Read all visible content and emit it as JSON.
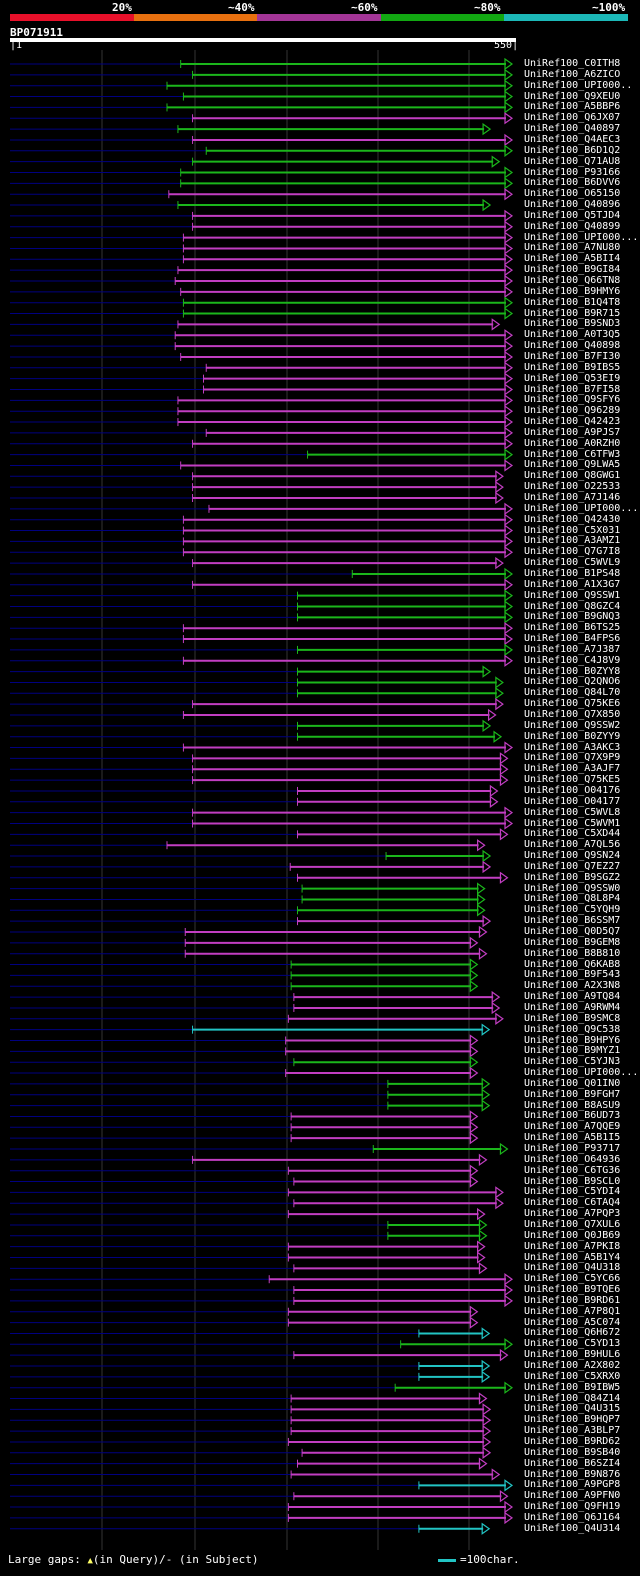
{
  "legend": {
    "labels": [
      "20%",
      "~40%",
      "~60%",
      "~80%",
      "~100%"
    ],
    "colors": [
      "#e8102a",
      "#e8700f",
      "#a33597",
      "#12a812",
      "#1cb8b8"
    ]
  },
  "query": {
    "name": "BP071911",
    "start": "1",
    "end": "550"
  },
  "hit_colors": {
    "magenta": "#c23ec2",
    "green": "#1bb61b",
    "cyan": "#22c4c4",
    "background_line": "#000080",
    "gap_marker": "#ffff66"
  },
  "hits": [
    {
      "name": "UniRef100_C0ITH8",
      "start": 187,
      "color": "green",
      "end": 550
    },
    {
      "name": "UniRef100_A6ZICO",
      "start": 200,
      "color": "green",
      "end": 550
    },
    {
      "name": "UniRef100_UPI000..",
      "start": 172,
      "color": "green",
      "end": 550
    },
    {
      "name": "UniRef100_Q9XEU0",
      "start": 190,
      "color": "green",
      "end": 550
    },
    {
      "name": "UniRef100_A5BBP6",
      "start": 172,
      "color": "green",
      "end": 550
    },
    {
      "name": "UniRef100_Q6JX07",
      "start": 200,
      "color": "magenta",
      "end": 550
    },
    {
      "name": "UniRef100_Q40897",
      "start": 184,
      "color": "green",
      "end": 526
    },
    {
      "name": "UniRef100_Q4AEC3",
      "start": 200,
      "color": "magenta",
      "end": 550
    },
    {
      "name": "UniRef100_B6D1Q2",
      "start": 215,
      "color": "green",
      "end": 550
    },
    {
      "name": "UniRef100_Q71AU8",
      "start": 200,
      "color": "green",
      "end": 536
    },
    {
      "name": "UniRef100_P93166",
      "start": 187,
      "color": "green",
      "end": 550
    },
    {
      "name": "UniRef100_B6DVV6",
      "start": 187,
      "color": "green",
      "end": 550
    },
    {
      "name": "UniRef100_O65150",
      "start": 174,
      "color": "magenta",
      "end": 550
    },
    {
      "name": "UniRef100_Q40896",
      "start": 184,
      "color": "green",
      "end": 526
    },
    {
      "name": "UniRef100_Q5TJD4",
      "start": 200,
      "color": "magenta",
      "end": 550
    },
    {
      "name": "UniRef100_Q40899",
      "start": 200,
      "color": "magenta",
      "end": 550
    },
    {
      "name": "UniRef100_UPI000...",
      "start": 190,
      "color": "magenta",
      "end": 550
    },
    {
      "name": "UniRef100_A7NU80",
      "start": 190,
      "color": "magenta",
      "end": 550
    },
    {
      "name": "UniRef100_A5BII4",
      "start": 190,
      "color": "magenta",
      "end": 550
    },
    {
      "name": "UniRef100_B9GI84",
      "start": 184,
      "color": "magenta",
      "end": 550
    },
    {
      "name": "UniRef100_Q66TN8",
      "start": 181,
      "color": "magenta",
      "end": 550
    },
    {
      "name": "UniRef100_B9HMY6",
      "start": 187,
      "color": "magenta",
      "end": 550
    },
    {
      "name": "UniRef100_B1Q4T8",
      "start": 190,
      "color": "green",
      "end": 550
    },
    {
      "name": "UniRef100_B9R715",
      "start": 190,
      "color": "green",
      "end": 550
    },
    {
      "name": "UniRef100_B9SND3",
      "start": 184,
      "color": "magenta",
      "end": 536
    },
    {
      "name": "UniRef100_A0T3Q5",
      "start": 181,
      "color": "magenta",
      "end": 550
    },
    {
      "name": "UniRef100_Q40898",
      "start": 181,
      "color": "magenta",
      "end": 550
    },
    {
      "name": "UniRef100_B7FI30",
      "start": 187,
      "color": "magenta",
      "end": 550
    },
    {
      "name": "UniRef100_B9IBS5",
      "start": 215,
      "color": "magenta",
      "end": 550
    },
    {
      "name": "UniRef100_Q53EI9",
      "start": 212,
      "color": "magenta",
      "end": 550
    },
    {
      "name": "UniRef100_B7FI58",
      "start": 212,
      "color": "magenta",
      "end": 550
    },
    {
      "name": "UniRef100_Q9SFY6",
      "start": 184,
      "color": "magenta",
      "end": 550
    },
    {
      "name": "UniRef100_Q96289",
      "start": 184,
      "color": "magenta",
      "end": 550
    },
    {
      "name": "UniRef100_Q42423",
      "start": 184,
      "color": "magenta",
      "end": 550
    },
    {
      "name": "UniRef100_A9PJS7",
      "start": 215,
      "color": "magenta",
      "end": 550
    },
    {
      "name": "UniRef100_A0RZH0",
      "start": 200,
      "color": "magenta",
      "end": 550
    },
    {
      "name": "UniRef100_C6TFW3",
      "start": 326,
      "color": "green",
      "end": 550
    },
    {
      "name": "UniRef100_Q9LWA5",
      "start": 187,
      "color": "magenta",
      "end": 550
    },
    {
      "name": "UniRef100_Q8GWG1",
      "start": 200,
      "color": "magenta",
      "end": 540
    },
    {
      "name": "UniRef100_O22533",
      "start": 200,
      "color": "magenta",
      "end": 540
    },
    {
      "name": "UniRef100_A7J146",
      "start": 200,
      "color": "magenta",
      "end": 540
    },
    {
      "name": "UniRef100_UPI000....",
      "start": 218,
      "color": "magenta",
      "end": 550
    },
    {
      "name": "UniRef100_Q42430",
      "start": 190,
      "color": "magenta",
      "end": 550
    },
    {
      "name": "UniRef100_C5X031",
      "start": 190,
      "color": "magenta",
      "end": 550
    },
    {
      "name": "UniRef100_A3AMZ1",
      "start": 190,
      "color": "magenta",
      "end": 550
    },
    {
      "name": "UniRef100_Q7G7I8",
      "start": 190,
      "color": "magenta",
      "end": 550
    },
    {
      "name": "UniRef100_C5WVL9",
      "start": 200,
      "color": "magenta",
      "end": 540
    },
    {
      "name": "UniRef100_B1PS48",
      "start": 375,
      "color": "green",
      "end": 550
    },
    {
      "name": "UniRef100_A1X3G7",
      "start": 200,
      "color": "magenta",
      "end": 550
    },
    {
      "name": "UniRef100_Q9SSW1",
      "start": 315,
      "color": "green",
      "end": 550
    },
    {
      "name": "UniRef100_Q8GZC4",
      "start": 315,
      "color": "green",
      "end": 550
    },
    {
      "name": "UniRef100_B9GNQ3",
      "start": 315,
      "color": "green",
      "end": 550
    },
    {
      "name": "UniRef100_B6TS25",
      "start": 190,
      "color": "magenta",
      "end": 550
    },
    {
      "name": "UniRef100_B4FPS6",
      "start": 190,
      "color": "magenta",
      "end": 550
    },
    {
      "name": "UniRef100_A7J387",
      "start": 315,
      "color": "green",
      "end": 550
    },
    {
      "name": "UniRef100_C4J8V9",
      "start": 190,
      "color": "magenta",
      "end": 550
    },
    {
      "name": "UniRef100_B0ZYY8",
      "start": 315,
      "color": "green",
      "end": 526
    },
    {
      "name": "UniRef100_Q2QNO6",
      "start": 315,
      "color": "green",
      "end": 540
    },
    {
      "name": "UniRef100_Q84L70",
      "start": 315,
      "color": "green",
      "end": 540
    },
    {
      "name": "UniRef100_Q75KE6",
      "start": 200,
      "color": "magenta",
      "end": 540
    },
    {
      "name": "UniRef100_Q7X850",
      "start": 190,
      "color": "magenta",
      "end": 532
    },
    {
      "name": "UniRef100_Q9SSW2",
      "start": 315,
      "color": "green",
      "end": 526
    },
    {
      "name": "UniRef100_B0ZYY9",
      "start": 315,
      "color": "green",
      "end": 538
    },
    {
      "name": "UniRef100_A3AKC3",
      "start": 190,
      "color": "magenta",
      "end": 550
    },
    {
      "name": "UniRef100_Q7X9P9",
      "start": 200,
      "color": "magenta",
      "end": 545
    },
    {
      "name": "UniRef100_A3AJF7",
      "start": 200,
      "color": "magenta",
      "end": 545
    },
    {
      "name": "UniRef100_Q75KE5",
      "start": 200,
      "color": "magenta",
      "end": 545
    },
    {
      "name": "UniRef100_O04176",
      "start": 315,
      "color": "magenta",
      "end": 534
    },
    {
      "name": "UniRef100_O04177",
      "start": 315,
      "color": "magenta",
      "end": 534
    },
    {
      "name": "UniRef100_C5WVL8",
      "start": 200,
      "color": "magenta",
      "end": 550
    },
    {
      "name": "UniRef100_C5WVM1",
      "start": 200,
      "color": "magenta",
      "end": 550
    },
    {
      "name": "UniRef100_C5XD44",
      "start": 315,
      "color": "magenta",
      "end": 545
    },
    {
      "name": "UniRef100_A7QL56",
      "start": 172,
      "color": "magenta",
      "end": 520
    },
    {
      "name": "UniRef100_Q9SN24",
      "start": 412,
      "color": "green",
      "end": 526
    },
    {
      "name": "UniRef100_Q7EZ27",
      "start": 307,
      "color": "magenta",
      "end": 526
    },
    {
      "name": "UniRef100_B9SGZ2",
      "start": 315,
      "color": "magenta",
      "end": 545
    },
    {
      "name": "UniRef100_Q9SSW0",
      "start": 320,
      "color": "green",
      "end": 520
    },
    {
      "name": "UniRef100_Q8L8P4",
      "start": 320,
      "color": "green",
      "end": 520
    },
    {
      "name": "UniRef100_C5YQH9",
      "start": 315,
      "color": "green",
      "end": 520
    },
    {
      "name": "UniRef100_B6SSM7",
      "start": 315,
      "color": "magenta",
      "end": 526
    },
    {
      "name": "UniRef100_Q0D5Q7",
      "start": 192,
      "color": "magenta",
      "end": 522
    },
    {
      "name": "UniRef100_B9GEM8",
      "start": 192,
      "color": "magenta",
      "end": 512
    },
    {
      "name": "UniRef100_B8B810",
      "start": 192,
      "color": "magenta",
      "end": 522
    },
    {
      "name": "UniRef100_Q6KAB8",
      "start": 308,
      "color": "green",
      "end": 512
    },
    {
      "name": "UniRef100_B9F543",
      "start": 308,
      "color": "green",
      "end": 512
    },
    {
      "name": "UniRef100_A2X3N8",
      "start": 308,
      "color": "green",
      "end": 512
    },
    {
      "name": "UniRef100_A9TQ84",
      "start": 311,
      "color": "magenta",
      "end": 536
    },
    {
      "name": "UniRef100_A9RWM4",
      "start": 311,
      "color": "magenta",
      "end": 536
    },
    {
      "name": "UniRef100_B9SMC8",
      "start": 305,
      "color": "magenta",
      "end": 540
    },
    {
      "name": "UniRef100_Q9C538",
      "start": 200,
      "color": "cyan",
      "end": 525
    },
    {
      "name": "UniRef100_B9HPY6",
      "start": 302,
      "color": "magenta",
      "end": 512
    },
    {
      "name": "UniRef100_B9MYZ1",
      "start": 302,
      "color": "magenta",
      "end": 512
    },
    {
      "name": "UniRef100_C5YJN3",
      "start": 311,
      "color": "green",
      "end": 512
    },
    {
      "name": "UniRef100_UPI000.....",
      "start": 302,
      "color": "magenta",
      "end": 512
    },
    {
      "name": "UniRef100_Q01IN0",
      "start": 414,
      "color": "green",
      "end": 525
    },
    {
      "name": "UniRef100_B9FGH7",
      "start": 414,
      "color": "green",
      "end": 525
    },
    {
      "name": "UniRef100_B8ASU9",
      "start": 414,
      "color": "green",
      "end": 525
    },
    {
      "name": "UniRef100_B6UD73",
      "start": 308,
      "color": "magenta",
      "end": 512
    },
    {
      "name": "UniRef100_A7QQE9",
      "start": 308,
      "color": "magenta",
      "end": 512
    },
    {
      "name": "UniRef100_A5B1I5",
      "start": 308,
      "color": "magenta",
      "end": 512
    },
    {
      "name": "UniRef100_P93717",
      "start": 398,
      "color": "green",
      "end": 545
    },
    {
      "name": "UniRef100_O64936",
      "start": 200,
      "color": "magenta",
      "end": 522
    },
    {
      "name": "UniRef100_C6TG36",
      "start": 305,
      "color": "magenta",
      "end": 512
    },
    {
      "name": "UniRef100_B9SCL0",
      "start": 311,
      "color": "magenta",
      "end": 512
    },
    {
      "name": "UniRef100_C5YDI4",
      "start": 305,
      "color": "magenta",
      "end": 540
    },
    {
      "name": "UniRef100_C6TAQ4",
      "start": 311,
      "color": "magenta",
      "end": 540
    },
    {
      "name": "UniRef100_A7PQP3",
      "start": 305,
      "color": "magenta",
      "end": 520
    },
    {
      "name": "UniRef100_Q7XUL6",
      "start": 414,
      "color": "green",
      "end": 522
    },
    {
      "name": "UniRef100_Q0JB69",
      "start": 414,
      "color": "green",
      "end": 522
    },
    {
      "name": "UniRef100_A7PKI8",
      "start": 305,
      "color": "magenta",
      "end": 520
    },
    {
      "name": "UniRef100_A5B1Y4",
      "start": 305,
      "color": "magenta",
      "end": 520
    },
    {
      "name": "UniRef100_Q4U318",
      "start": 311,
      "color": "magenta",
      "end": 522
    },
    {
      "name": "UniRef100_C5YC66",
      "start": 284,
      "color": "magenta",
      "end": 550
    },
    {
      "name": "UniRef100_B9TQE6",
      "start": 311,
      "color": "magenta",
      "end": 550
    },
    {
      "name": "UniRef100_B9RD61",
      "start": 311,
      "color": "magenta",
      "end": 550
    },
    {
      "name": "UniRef100_A7P8Q1",
      "start": 305,
      "color": "magenta",
      "end": 512
    },
    {
      "name": "UniRef100_A5C074",
      "start": 305,
      "color": "magenta",
      "end": 512
    },
    {
      "name": "UniRef100_Q6H672",
      "start": 448,
      "color": "cyan",
      "end": 525
    },
    {
      "name": "UniRef100_C5YD13",
      "start": 428,
      "color": "green",
      "end": 550
    },
    {
      "name": "UniRef100_B9HUL6",
      "start": 311,
      "color": "magenta",
      "end": 545
    },
    {
      "name": "UniRef100_A2X802",
      "start": 448,
      "color": "cyan",
      "end": 525
    },
    {
      "name": "UniRef100_C5XRX0",
      "start": 448,
      "color": "cyan",
      "end": 525
    },
    {
      "name": "UniRef100_B9IBW5",
      "start": 422,
      "color": "green",
      "end": 550
    },
    {
      "name": "UniRef100_Q84Z14",
      "start": 308,
      "color": "magenta",
      "end": 522
    },
    {
      "name": "UniRef100_Q4U315",
      "start": 308,
      "color": "magenta",
      "end": 526
    },
    {
      "name": "UniRef100_B9HQP7",
      "start": 308,
      "color": "magenta",
      "end": 526
    },
    {
      "name": "UniRef100_A3BLP7",
      "start": 308,
      "color": "magenta",
      "end": 526
    },
    {
      "name": "UniRef100_B9RD62",
      "start": 305,
      "color": "magenta",
      "end": 526
    },
    {
      "name": "UniRef100_B9SB40",
      "start": 320,
      "color": "magenta",
      "end": 526
    },
    {
      "name": "UniRef100_B6SZI4",
      "start": 315,
      "color": "magenta",
      "end": 522
    },
    {
      "name": "UniRef100_B9N876",
      "start": 308,
      "color": "magenta",
      "end": 536
    },
    {
      "name": "UniRef100_A9PGP8",
      "start": 448,
      "color": "cyan",
      "end": 550
    },
    {
      "name": "UniRef100_A9PFN0",
      "start": 311,
      "color": "magenta",
      "end": 545
    },
    {
      "name": "UniRef100_Q9FH19",
      "start": 305,
      "color": "magenta",
      "end": 550
    },
    {
      "name": "UniRef100_Q6J164",
      "start": 305,
      "color": "magenta",
      "end": 550
    },
    {
      "name": "UniRef100_Q4U314",
      "start": 448,
      "color": "cyan",
      "end": 525
    }
  ],
  "footer": {
    "gaps_label": "Large gaps: ",
    "query_marker": "▲",
    "query_text": "(in Query)/- (in Subject)",
    "scale_text": "=100char."
  }
}
